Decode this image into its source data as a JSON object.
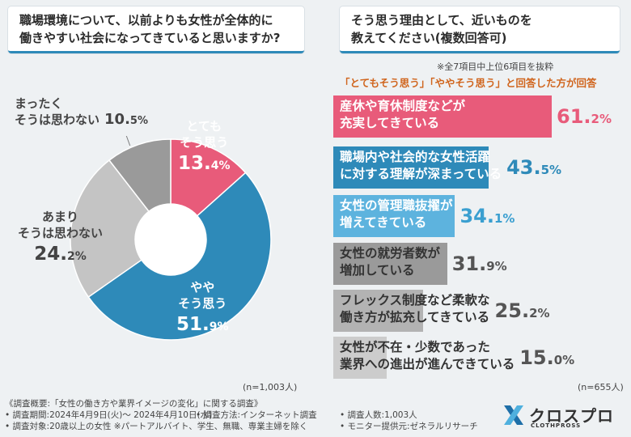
{
  "left_question": {
    "line1": "職場環境について、以前よりも女性が全体的に",
    "line2": "働きやすい社会になってきていると思いますか?"
  },
  "right_question": {
    "line1": "そう思う理由として、近いものを",
    "line2": "教えてください(複数回答可)"
  },
  "note_top": "※全7項目中上位6項目を抜粋",
  "note_respondents": "「とてもそう思う」「ややそう思う」と回答した方が回答",
  "pie_n": "(n=1,003人)",
  "bar_n": "(n=655人)",
  "pie_labels": {
    "totemo": {
      "l1": "とても",
      "l2": "そう思う",
      "num": "13.",
      "dec": "4%"
    },
    "yaya": {
      "l1": "やや",
      "l2": "そう思う",
      "num": "51.",
      "dec": "9%"
    },
    "amari": {
      "l1": "あまり",
      "l2": "そうは思わない",
      "num": "24.",
      "dec": "2%"
    },
    "mattaku": {
      "l1": "まったく",
      "l2": "そうは思わない",
      "num": "10.",
      "dec": "5%"
    }
  },
  "chart_data": [
    {
      "type": "pie",
      "categories": [
        "とてもそう思う",
        "ややそう思う",
        "あまりそうは思わない",
        "まったくそうは思わない"
      ],
      "values": [
        13.4,
        51.9,
        24.2,
        10.5
      ],
      "colors": [
        "#e85b7a",
        "#2e8ab9",
        "#c4c4c4",
        "#9a9a9a"
      ]
    },
    {
      "type": "bar",
      "orientation": "horizontal",
      "categories": [
        "産休や育休制度などが充実してきている",
        "職場内や社会的な女性活躍に対する理解が深まっている",
        "女性の管理職抜擢が増えてきている",
        "女性の就労者数が増加している",
        "フレックス制度など柔軟な働き方が拡充してきている",
        "女性が不在・少数であった業界への進出が進んできている"
      ],
      "values": [
        61.2,
        43.5,
        34.1,
        31.9,
        25.2,
        15.0
      ],
      "colors": [
        "#e85b7a",
        "#2e8ab9",
        "#5db3de",
        "#9a9a9a",
        "#b3b3b3",
        "#cccccc"
      ]
    }
  ],
  "bars": [
    {
      "l1": "産休や育休制度などが",
      "l2": "充実してきている",
      "num": "61.",
      "dec": "2%"
    },
    {
      "l1": "職場内や社会的な女性活躍",
      "l2": "に対する理解が深まっている",
      "num": "43.",
      "dec": "5%"
    },
    {
      "l1": "女性の管理職抜擢が",
      "l2": "増えてきている",
      "num": "34.",
      "dec": "1%"
    },
    {
      "l1": "女性の就労者数が",
      "l2": "増加している",
      "num": "31.",
      "dec": "9%"
    },
    {
      "l1": "フレックス制度など柔軟な",
      "l2": "働き方が拡充してきている",
      "num": "25.",
      "dec": "2%"
    },
    {
      "l1": "女性が不在・少数であった",
      "l2": "業界への進出が進んできている",
      "num": "15.",
      "dec": "0%"
    }
  ],
  "footer": {
    "summary": "《調査概要:「女性の働き方や業界イメージの変化」に関する調査》",
    "period": "• 調査期間:2024年4月9日(火)〜 2024年4月10日(水)",
    "method": "• 調査方法:インターネット調査",
    "count": "• 調査人数:1,003人",
    "target": "• 調査対象:20歳以上の女性 ※パートアルバイト、学生、無職、専業主婦を除く",
    "provider": "• モニター提供元:ゼネラルリサーチ"
  },
  "logo": {
    "name": "クロスプロ",
    "sub": "CLOTHPROSS"
  }
}
